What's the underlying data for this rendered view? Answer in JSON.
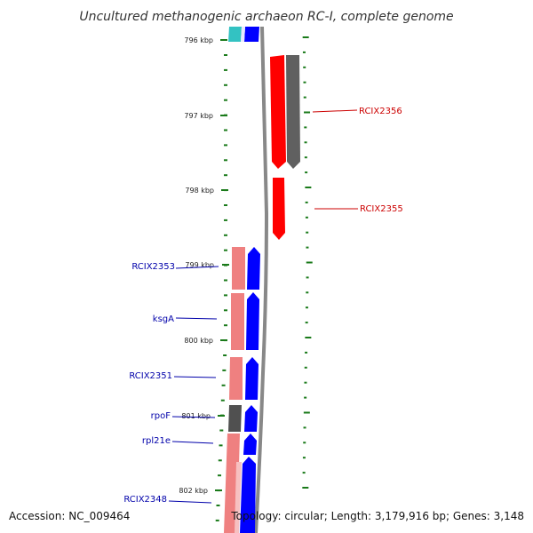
{
  "title": "Uncultured methanogenic archaeon RC-I, complete genome",
  "footer": {
    "accession": "Accession: NC_009464",
    "summary": "Topology: circular; Length: 3,179,916 bp; Genes: 3,148"
  },
  "scale_ticks": [
    "796 kbp",
    "797 kbp",
    "798 kbp",
    "799 kbp",
    "800 kbp",
    "801 kbp",
    "802 kbp"
  ],
  "colors": {
    "forward_gene": "#0000ff",
    "reverse_gene": "#ff0000",
    "forward_label": "#0000aa",
    "reverse_label": "#cc0000",
    "forward_cds_pink": "#ef8080",
    "reverse_cds_gray": "#606060",
    "other_gene_gray": "#505050",
    "teal_gene": "#33c2c2",
    "backbone": "#888888",
    "tick": "#1a7a1a"
  },
  "gene_labels": [
    {
      "name": "RCIX2356",
      "strand": "reverse"
    },
    {
      "name": "RCIX2355",
      "strand": "reverse"
    },
    {
      "name": "RCIX2353",
      "strand": "forward"
    },
    {
      "name": "ksgA",
      "strand": "forward"
    },
    {
      "name": "RCIX2351",
      "strand": "forward"
    },
    {
      "name": "rpoF",
      "strand": "forward"
    },
    {
      "name": "rpl21e",
      "strand": "forward"
    },
    {
      "name": "RCIX2348",
      "strand": "forward"
    }
  ]
}
